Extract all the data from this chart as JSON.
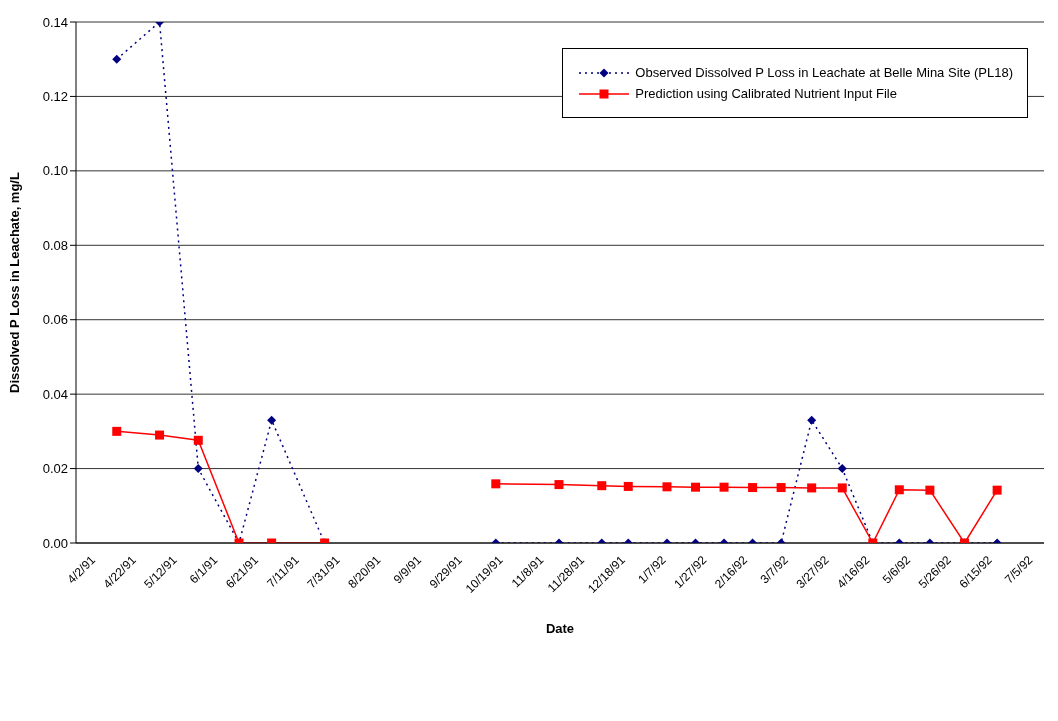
{
  "chart_data": {
    "type": "line",
    "xlabel": "Date",
    "ylabel": "Dissolved P Loss in Leachate, mg/L",
    "x": [
      "1991-04-15",
      "1991-05-06",
      "1991-05-25",
      "1991-06-14",
      "1991-06-30",
      "1991-07-26",
      "1991-09-01",
      "1991-10-18",
      "1991-11-18",
      "1991-12-09",
      "1991-12-22",
      "1992-01-10",
      "1992-01-24",
      "1992-02-07",
      "1992-02-21",
      "1992-03-06",
      "1992-03-21",
      "1992-04-05",
      "1992-04-20",
      "1992-05-03",
      "1992-05-18",
      "1992-06-04",
      "1992-06-20"
    ],
    "series": [
      {
        "name": "Observed Dissolved P Loss in Leachate at Belle Mina Site (PL18)",
        "color": "#000080",
        "marker": "diamond",
        "line_style": "dotted",
        "values": [
          0.13,
          0.14,
          0.02,
          0,
          0.033,
          0,
          null,
          0,
          0,
          0,
          0,
          0,
          0,
          0,
          0,
          0,
          0.033,
          0.02,
          0,
          0,
          0,
          0,
          0
        ]
      },
      {
        "name": "Prediction using Calibrated Nutrient Input File",
        "color": "#ff0000",
        "marker": "square",
        "line_style": "solid",
        "values": [
          0.03,
          0.029,
          0.0276,
          0,
          0,
          0,
          null,
          0.0159,
          0.0157,
          0.0154,
          0.0152,
          0.0151,
          0.015,
          0.015,
          0.0149,
          0.0149,
          0.0148,
          0.0148,
          0,
          0.0143,
          0.0142,
          0,
          0.0142
        ]
      }
    ],
    "xlim": [
      "1991-03-26",
      "1992-07-13"
    ],
    "xticks": [
      {
        "value": "1991-04-02",
        "label": "4/2/91"
      },
      {
        "value": "1991-04-22",
        "label": "4/22/91"
      },
      {
        "value": "1991-05-12",
        "label": "5/12/91"
      },
      {
        "value": "1991-06-01",
        "label": "6/1/91"
      },
      {
        "value": "1991-06-21",
        "label": "6/21/91"
      },
      {
        "value": "1991-07-11",
        "label": "7/11/91"
      },
      {
        "value": "1991-07-31",
        "label": "7/31/91"
      },
      {
        "value": "1991-08-20",
        "label": "8/20/91"
      },
      {
        "value": "1991-09-09",
        "label": "9/9/91"
      },
      {
        "value": "1991-09-29",
        "label": "9/29/91"
      },
      {
        "value": "1991-10-19",
        "label": "10/19/91"
      },
      {
        "value": "1991-11-08",
        "label": "11/8/91"
      },
      {
        "value": "1991-11-28",
        "label": "11/28/91"
      },
      {
        "value": "1991-12-18",
        "label": "12/18/91"
      },
      {
        "value": "1992-01-07",
        "label": "1/7/92"
      },
      {
        "value": "1992-01-27",
        "label": "1/27/92"
      },
      {
        "value": "1992-02-16",
        "label": "2/16/92"
      },
      {
        "value": "1992-03-07",
        "label": "3/7/92"
      },
      {
        "value": "1992-03-27",
        "label": "3/27/92"
      },
      {
        "value": "1992-04-16",
        "label": "4/16/92"
      },
      {
        "value": "1992-05-06",
        "label": "5/6/92"
      },
      {
        "value": "1992-05-26",
        "label": "5/26/92"
      },
      {
        "value": "1992-06-15",
        "label": "6/15/92"
      },
      {
        "value": "1992-07-05",
        "label": "7/5/92"
      }
    ],
    "ylim": [
      0,
      0.14
    ],
    "yticks": [
      {
        "value": 0,
        "label": "0.00"
      },
      {
        "value": 0.02,
        "label": "0.02"
      },
      {
        "value": 0.04,
        "label": "0.04"
      },
      {
        "value": 0.06,
        "label": "0.06"
      },
      {
        "value": 0.08,
        "label": "0.08"
      },
      {
        "value": 0.1,
        "label": "0.10"
      },
      {
        "value": 0.12,
        "label": "0.12"
      },
      {
        "value": 0.14,
        "label": "0.14"
      }
    ],
    "grid": "y",
    "legend": "top right"
  }
}
